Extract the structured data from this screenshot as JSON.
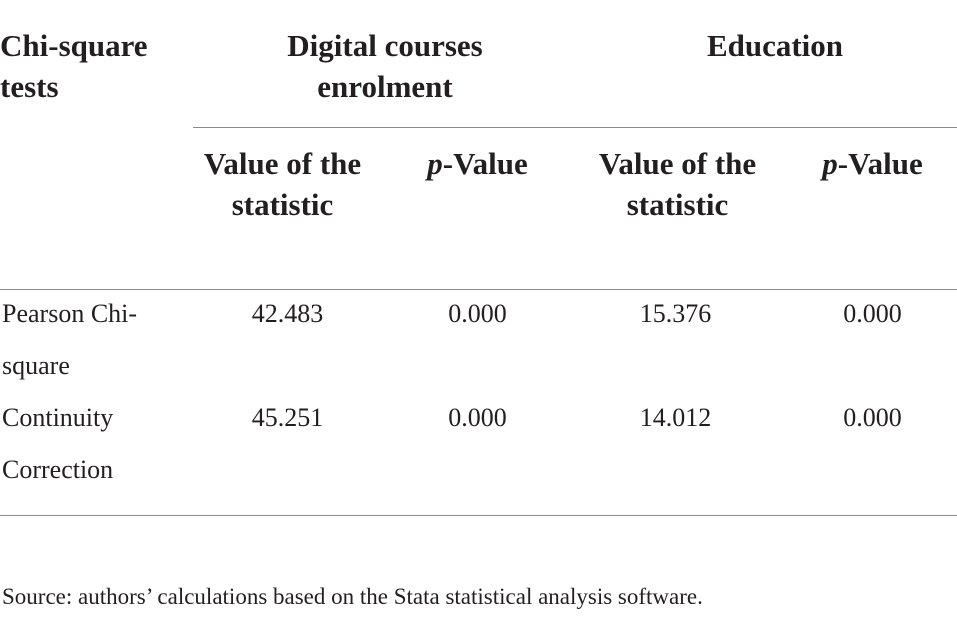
{
  "table": {
    "corner_header": "Chi-square tests",
    "groups": [
      {
        "label": "Digital courses enrolment"
      },
      {
        "label": "Education"
      }
    ],
    "subheaders": {
      "value": "Value of the statistic",
      "p_prefix": "p",
      "p_suffix": "-Value"
    },
    "rows": [
      {
        "label": "Pearson Chi-square",
        "values": [
          "42.483",
          "0.000",
          "15.376",
          "0.000"
        ]
      },
      {
        "label": "Continuity Correction",
        "values": [
          "45.251",
          "0.000",
          "14.012",
          "0.000"
        ]
      }
    ]
  },
  "source_note": "Source: authors’ calculations based on the Stata statistical analysis software."
}
